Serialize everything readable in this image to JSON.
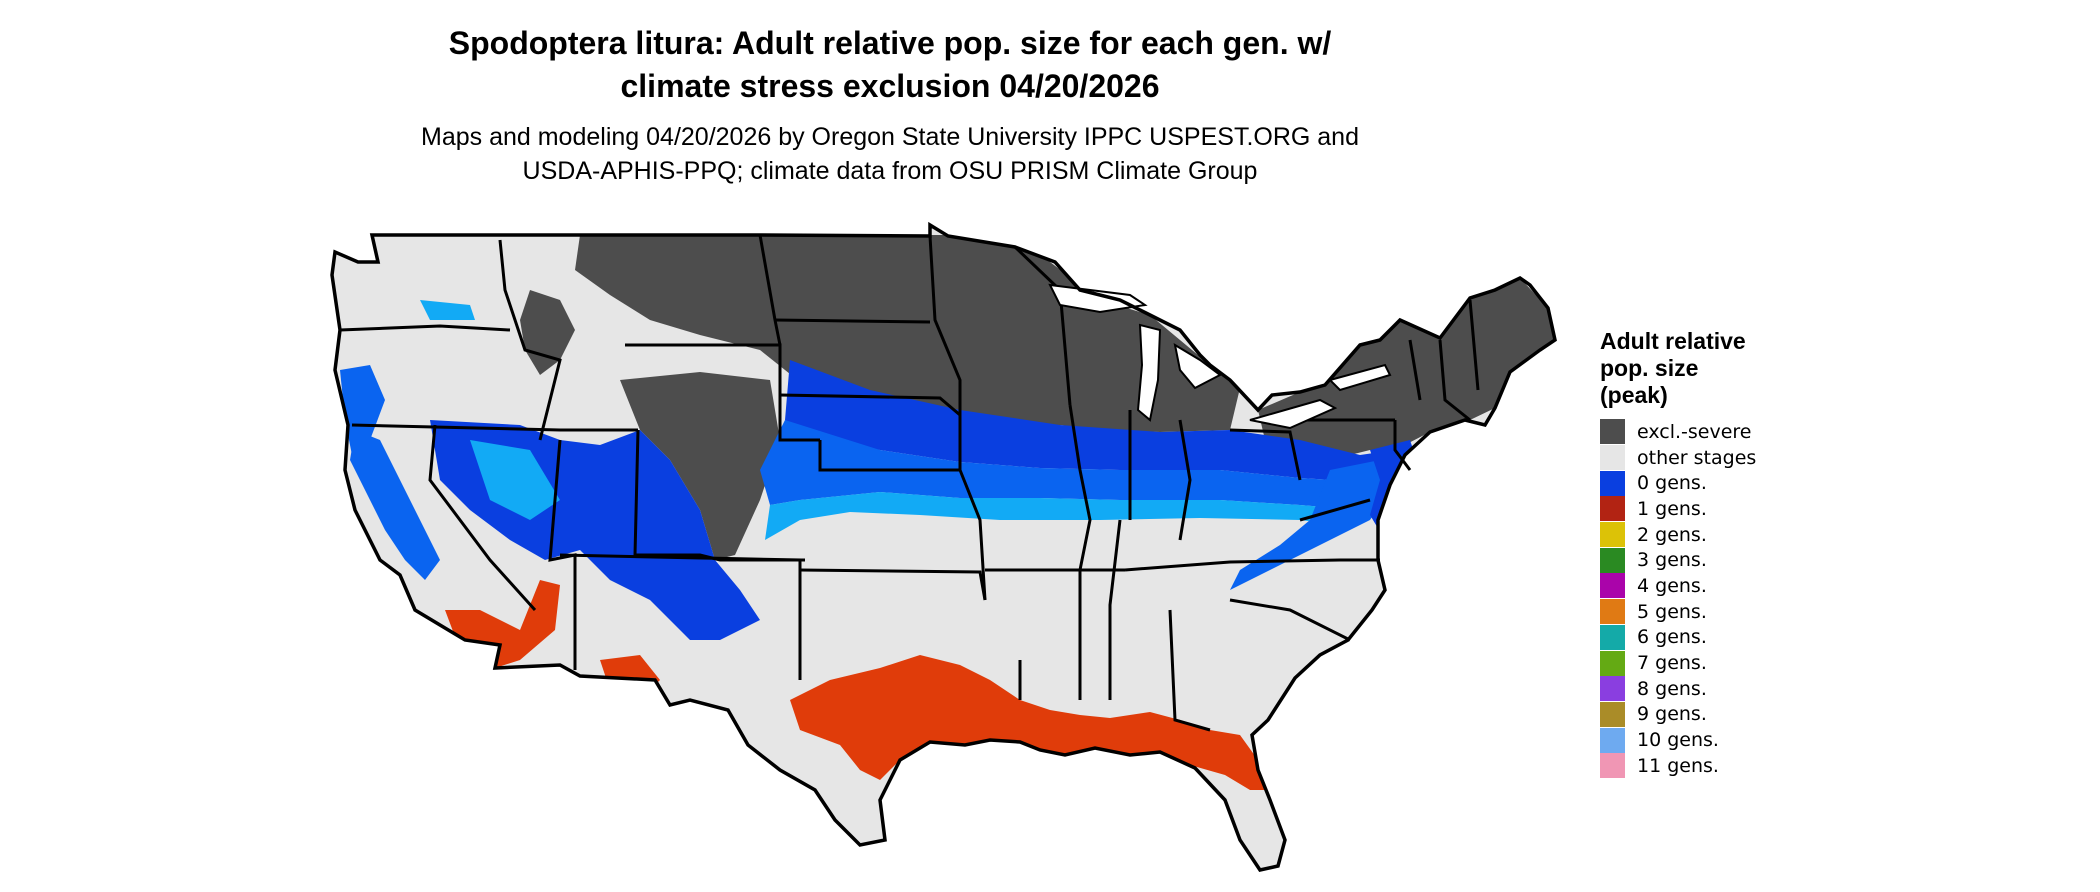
{
  "title": "Spodoptera litura: Adult relative pop. size for each gen. w/\nclimate stress exclusion 04/20/2026",
  "subtitle": "Maps and modeling 04/20/2026 by Oregon State University IPPC USPEST.ORG and\nUSDA-APHIS-PPQ; climate data from OSU PRISM Climate Group",
  "legend": {
    "title": "Adult relative\npop. size\n(peak)",
    "items": [
      {
        "label": "excl.-severe",
        "color": "#4d4d4d"
      },
      {
        "label": "other stages",
        "color": "#e6e6e6"
      },
      {
        "label": "0 gens.",
        "color": "#0a3fe0"
      },
      {
        "label": "1 gens.",
        "color": "#b22313"
      },
      {
        "label": "2 gens.",
        "color": "#dcc207"
      },
      {
        "label": "3 gens.",
        "color": "#2a8a22"
      },
      {
        "label": "4 gens.",
        "color": "#aa04aa"
      },
      {
        "label": "5 gens.",
        "color": "#e07a14"
      },
      {
        "label": "6 gens.",
        "color": "#14aaa8"
      },
      {
        "label": "7 gens.",
        "color": "#64aa14"
      },
      {
        "label": "8 gens.",
        "color": "#8a3ee0"
      },
      {
        "label": "9 gens.",
        "color": "#aa8c28"
      },
      {
        "label": "10 gens.",
        "color": "#6eaaf0"
      },
      {
        "label": "11 gens.",
        "color": "#f096b4"
      }
    ]
  },
  "map_colors": {
    "land": "#e6e6e6",
    "excluded": "#4d4d4d",
    "blue_dark": "#0a3fe0",
    "blue_mid": "#0a64f0",
    "blue_light": "#12aaf5",
    "red_orange": "#e03c0a",
    "yellow": "#dcc207"
  }
}
